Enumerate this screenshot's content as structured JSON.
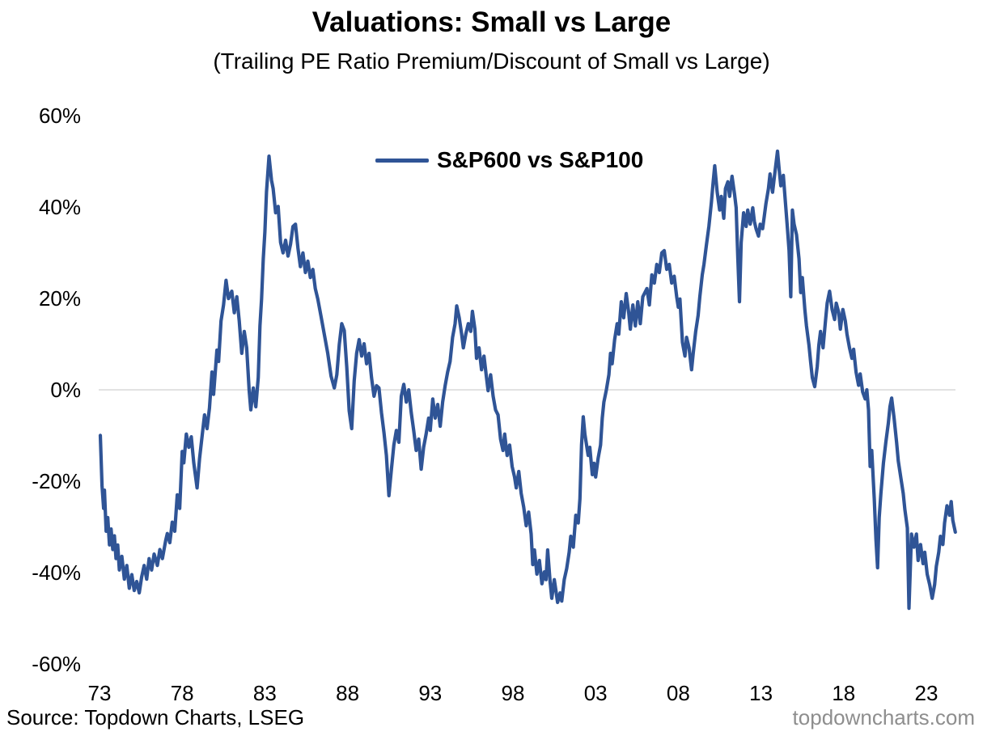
{
  "footer": {
    "source": "Source: Topdown Charts, LSEG",
    "watermark": "topdowncharts.com"
  },
  "colors": {
    "line": "#2F5496",
    "gridline": "#D9D9D9",
    "text": "#000000",
    "watermark": "#8E8E8E",
    "background": "#FFFFFF"
  },
  "chart_data": {
    "type": "line",
    "title": "Valuations: Small vs Large",
    "subtitle": "(Trailing PE Ratio Premium/Discount of Small vs Large)",
    "xlabel": "",
    "ylabel": "",
    "units": "percent",
    "grid": "single horizontal gridline at 0% only",
    "legend_position": "top-center-inside",
    "ylim": [
      -60,
      60
    ],
    "xlim": [
      1973,
      2025.5
    ],
    "y_ticks": [
      {
        "label": "60%",
        "value": 60
      },
      {
        "label": "40%",
        "value": 40
      },
      {
        "label": "20%",
        "value": 20
      },
      {
        "label": "0%",
        "value": 0
      },
      {
        "label": "-20%",
        "value": -20
      },
      {
        "label": "-40%",
        "value": -40
      },
      {
        "label": "-60%",
        "value": -60
      }
    ],
    "x_ticks": [
      {
        "label": "73",
        "year": 1973
      },
      {
        "label": "78",
        "year": 1978
      },
      {
        "label": "83",
        "year": 1983
      },
      {
        "label": "88",
        "year": 1988
      },
      {
        "label": "93",
        "year": 1993
      },
      {
        "label": "98",
        "year": 1998
      },
      {
        "label": "03",
        "year": 2003
      },
      {
        "label": "08",
        "year": 2008
      },
      {
        "label": "13",
        "year": 2013
      },
      {
        "label": "18",
        "year": 2018
      },
      {
        "label": "23",
        "year": 2023
      }
    ],
    "series": [
      {
        "name": "S&P600 vs S&P100",
        "color": "#2F5496",
        "x": [
          1973.05,
          1973.15,
          1973.25,
          1973.3,
          1973.4,
          1973.5,
          1973.6,
          1973.7,
          1973.8,
          1973.9,
          1974,
          1974.1,
          1974.2,
          1974.35,
          1974.5,
          1974.65,
          1974.8,
          1974.95,
          1975.1,
          1975.25,
          1975.4,
          1975.55,
          1975.7,
          1975.85,
          1976,
          1976.15,
          1976.3,
          1976.5,
          1976.65,
          1976.8,
          1977,
          1977.1,
          1977.25,
          1977.4,
          1977.55,
          1977.7,
          1977.85,
          1978,
          1978.1,
          1978.25,
          1978.4,
          1978.55,
          1978.7,
          1978.9,
          1979.05,
          1979.2,
          1979.35,
          1979.5,
          1979.65,
          1979.8,
          1979.9,
          1980.1,
          1980.2,
          1980.35,
          1980.5,
          1980.65,
          1980.8,
          1981,
          1981.15,
          1981.3,
          1981.45,
          1981.6,
          1981.75,
          1981.9,
          1982.05,
          1982.15,
          1982.3,
          1982.45,
          1982.6,
          1982.7,
          1982.8,
          1982.9,
          1983,
          1983.1,
          1983.25,
          1983.4,
          1983.5,
          1983.65,
          1983.8,
          1983.95,
          1984.1,
          1984.25,
          1984.4,
          1984.55,
          1984.7,
          1984.85,
          1985,
          1985.15,
          1985.3,
          1985.45,
          1985.6,
          1985.75,
          1985.9,
          1986.05,
          1986.2,
          1986.4,
          1986.6,
          1986.8,
          1987,
          1987.2,
          1987.35,
          1987.5,
          1987.65,
          1987.8,
          1987.95,
          1988.1,
          1988.25,
          1988.4,
          1988.55,
          1988.7,
          1988.85,
          1989,
          1989.15,
          1989.3,
          1989.45,
          1989.6,
          1989.75,
          1989.9,
          1990.05,
          1990.2,
          1990.35,
          1990.5,
          1990.65,
          1990.8,
          1990.95,
          1991.1,
          1991.25,
          1991.4,
          1991.55,
          1991.7,
          1991.85,
          1992,
          1992.15,
          1992.3,
          1992.45,
          1992.6,
          1992.75,
          1992.9,
          1993,
          1993.15,
          1993.3,
          1993.45,
          1993.6,
          1993.75,
          1993.9,
          1994.05,
          1994.2,
          1994.35,
          1994.5,
          1994.6,
          1994.75,
          1994.9,
          1995,
          1995.15,
          1995.3,
          1995.45,
          1995.55,
          1995.7,
          1995.8,
          1995.95,
          1996.1,
          1996.25,
          1996.4,
          1996.5,
          1996.65,
          1996.8,
          1996.95,
          1997.1,
          1997.25,
          1997.4,
          1997.5,
          1997.65,
          1997.8,
          1997.95,
          1998.1,
          1998.2,
          1998.35,
          1998.5,
          1998.65,
          1998.8,
          1998.95,
          1999.1,
          1999.2,
          1999.3,
          1999.45,
          1999.6,
          1999.75,
          1999.9,
          2000,
          2000.1,
          2000.25,
          2000.35,
          2000.5,
          2000.6,
          2000.7,
          2000.85,
          2000.95,
          2001.1,
          2001.25,
          2001.4,
          2001.5,
          2001.65,
          2001.8,
          2001.95,
          2002.05,
          2002.15,
          2002.25,
          2002.35,
          2002.45,
          2002.55,
          2002.65,
          2002.8,
          2002.9,
          2003,
          2003.15,
          2003.3,
          2003.4,
          2003.5,
          2003.65,
          2003.8,
          2003.9,
          2004,
          2004.15,
          2004.3,
          2004.4,
          2004.55,
          2004.7,
          2004.85,
          2005,
          2005.1,
          2005.25,
          2005.4,
          2005.55,
          2005.7,
          2005.85,
          2006.1,
          2006.25,
          2006.4,
          2006.55,
          2006.7,
          2006.85,
          2007,
          2007.15,
          2007.3,
          2007.45,
          2007.6,
          2007.75,
          2007.9,
          2008,
          2008.1,
          2008.25,
          2008.4,
          2008.5,
          2008.65,
          2008.8,
          2008.9,
          2009.05,
          2009.2,
          2009.3,
          2009.45,
          2009.55,
          2009.7,
          2009.85,
          2010,
          2010.1,
          2010.2,
          2010.35,
          2010.5,
          2010.6,
          2010.75,
          2010.85,
          2011,
          2011.1,
          2011.25,
          2011.4,
          2011.5,
          2011.6,
          2011.7,
          2011.8,
          2011.95,
          2012.1,
          2012.2,
          2012.35,
          2012.5,
          2012.6,
          2012.7,
          2012.85,
          2012.95,
          2013.1,
          2013.2,
          2013.3,
          2013.45,
          2013.55,
          2013.7,
          2013.8,
          2014,
          2014.1,
          2014.2,
          2014.35,
          2014.5,
          2014.6,
          2014.7,
          2014.8,
          2014.9,
          2015,
          2015.15,
          2015.3,
          2015.4,
          2015.5,
          2015.65,
          2015.75,
          2015.9,
          2016,
          2016.1,
          2016.25,
          2016.4,
          2016.5,
          2016.6,
          2016.75,
          2016.9,
          2017,
          2017.15,
          2017.3,
          2017.45,
          2017.55,
          2017.7,
          2017.8,
          2017.95,
          2018.1,
          2018.2,
          2018.35,
          2018.5,
          2018.6,
          2018.75,
          2018.9,
          2019,
          2019.15,
          2019.3,
          2019.4,
          2019.5,
          2019.6,
          2019.7,
          2019.85,
          2019.95,
          2020.05,
          2020.15,
          2020.25,
          2020.4,
          2020.55,
          2020.7,
          2020.8,
          2020.9,
          2021.05,
          2021.2,
          2021.3,
          2021.45,
          2021.6,
          2021.7,
          2021.85,
          2021.95,
          2022.1,
          2022.25,
          2022.4,
          2022.5,
          2022.65,
          2022.8,
          2022.9,
          2023.05,
          2023.2,
          2023.35,
          2023.5,
          2023.6,
          2023.75,
          2023.85,
          2024,
          2024.1,
          2024.25,
          2024.4,
          2024.5,
          2024.6,
          2024.75
        ],
        "values": [
          -10,
          -21,
          -26,
          -22,
          -31,
          -28,
          -34,
          -30.5,
          -35,
          -32,
          -37,
          -34,
          -39.5,
          -36.5,
          -41.5,
          -38.5,
          -43.5,
          -40.5,
          -44,
          -42,
          -44.5,
          -41,
          -38.5,
          -41.5,
          -37,
          -39.5,
          -36,
          -38.5,
          -35,
          -37,
          -33,
          -31.5,
          -33.5,
          -29,
          -31,
          -23,
          -26,
          -13.5,
          -16,
          -9.7,
          -12.6,
          -10.3,
          -16,
          -21.5,
          -15,
          -10.3,
          -5.5,
          -8.5,
          -4,
          3.9,
          -1,
          8.7,
          6.2,
          15.1,
          18.6,
          24,
          20,
          21.6,
          16.9,
          20.4,
          15.1,
          8,
          12.8,
          9.2,
          -0.2,
          -4.4,
          0.4,
          -3.7,
          2.7,
          14,
          19.9,
          28.7,
          34.6,
          43.4,
          51.2,
          45.9,
          44.1,
          38.8,
          40.2,
          32.3,
          30,
          32.8,
          29.3,
          31.9,
          35.8,
          36.3,
          31,
          27,
          30,
          25.7,
          28.2,
          24.6,
          26.4,
          22.2,
          19.9,
          16,
          12,
          8,
          3,
          0.4,
          3.3,
          10,
          14.5,
          13,
          5,
          -4.6,
          -8.5,
          2,
          8,
          11,
          7.4,
          10.1,
          5.7,
          8,
          2.7,
          -1.4,
          0.9,
          0.4,
          -5,
          -9.4,
          -14.4,
          -23.2,
          -17.4,
          -12.1,
          -8.9,
          -11.5,
          -1.4,
          1.2,
          -2.7,
          0,
          -5,
          -9,
          -13.3,
          -10.8,
          -17.4,
          -12.6,
          -9.7,
          -6.2,
          -8.9,
          -2,
          -6.2,
          -3.2,
          -8,
          -2.7,
          0.9,
          3.9,
          6.2,
          11.5,
          14.5,
          18.4,
          15.8,
          12.2,
          9.2,
          12.2,
          14.5,
          12.8,
          17.2,
          13.3,
          6.9,
          9.2,
          4.4,
          7.4,
          2.7,
          -0.2,
          3.3,
          -1.4,
          -4.4,
          -5.5,
          -10.8,
          -13.3,
          -9.7,
          -14.4,
          -12.1,
          -16.8,
          -19.1,
          -21.5,
          -17.9,
          -22.7,
          -25.7,
          -29.8,
          -26.8,
          -31.6,
          -38.3,
          -35.1,
          -40.4,
          -37.4,
          -42.5,
          -39.9,
          -41.6,
          -35.1,
          -42.2,
          -45.7,
          -41.6,
          -44,
          -46.6,
          -44.5,
          -46.3,
          -41.6,
          -39.2,
          -35.6,
          -32.1,
          -34.5,
          -27.5,
          -29.2,
          -23.9,
          -12.1,
          -5.9,
          -9.7,
          -12.1,
          -14.4,
          -12.6,
          -18.6,
          -16.1,
          -19.1,
          -15,
          -12.1,
          -6.2,
          -2.7,
          0,
          3.3,
          8,
          5.7,
          11,
          14.5,
          12.2,
          19.3,
          15.8,
          21.1,
          16.9,
          13.3,
          18.6,
          14,
          19.3,
          14.5,
          20.4,
          22.2,
          18.6,
          25.2,
          23.4,
          27.5,
          25.7,
          30,
          30.5,
          26.4,
          27.5,
          23.4,
          24.9,
          20.4,
          18.1,
          19.9,
          10.4,
          7.4,
          11.5,
          9.2,
          4.4,
          8,
          12.8,
          16.3,
          20.4,
          25.2,
          27.5,
          31.7,
          35.8,
          41.1,
          45.2,
          49.1,
          43.4,
          39.4,
          42.4,
          37.6,
          44.1,
          45.6,
          42.4,
          46.8,
          42.9,
          39.9,
          28.7,
          19.3,
          32.3,
          38.8,
          35.8,
          39.4,
          36.3,
          39.9,
          36.9,
          35.3,
          33.7,
          36.3,
          35.3,
          38.1,
          40.8,
          44.1,
          47.3,
          43.3,
          46.5,
          52.3,
          48.2,
          44.7,
          47,
          39.9,
          35.3,
          30.5,
          20.4,
          39.4,
          36.3,
          34,
          28.7,
          21.3,
          24.6,
          17.6,
          14,
          9.8,
          6.2,
          2.7,
          0.7,
          5.1,
          9.8,
          12.8,
          9.2,
          15.1,
          19,
          21.6,
          17.6,
          15.4,
          19,
          16.9,
          13.3,
          17.6,
          15.1,
          12.2,
          9.2,
          6.9,
          8.9,
          3.9,
          1,
          3.5,
          -0.5,
          -2,
          0,
          -4.4,
          -16.8,
          -13.3,
          -23.9,
          -32.8,
          -39,
          -28,
          -22.7,
          -16.1,
          -11.5,
          -7.3,
          -3.7,
          -1.8,
          -6.2,
          -11.5,
          -15.6,
          -19.1,
          -22.7,
          -26.2,
          -30.3,
          -47.9,
          -31.6,
          -34.5,
          -31.6,
          -37.4,
          -33.9,
          -38.1,
          -35.6,
          -40.4,
          -42.7,
          -45.7,
          -42.7,
          -38.7,
          -35.6,
          -32.1,
          -33.9,
          -29.2,
          -25.4,
          -27.5,
          -24.5,
          -28.6,
          -31.2
        ]
      }
    ]
  }
}
